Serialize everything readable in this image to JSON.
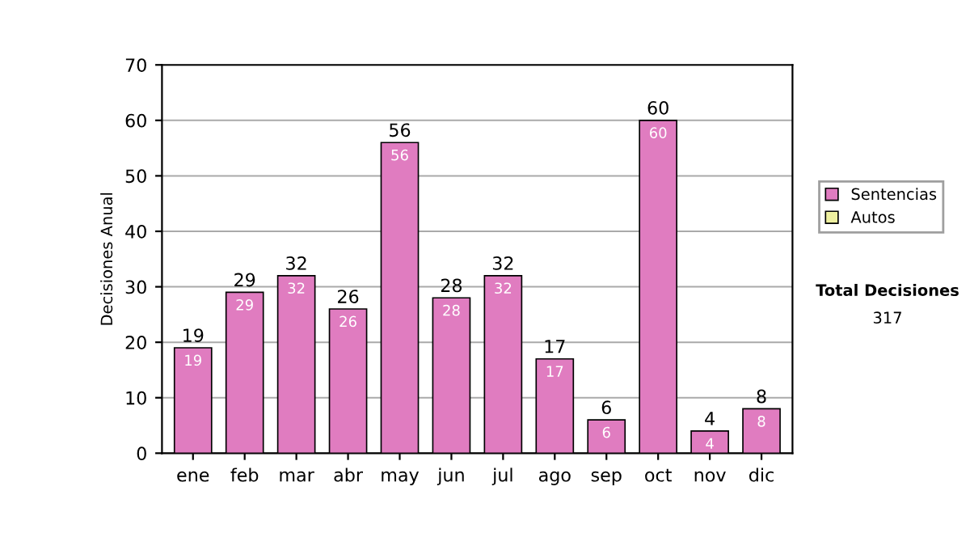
{
  "chart_data": {
    "type": "bar",
    "ylabel": "Decisiones Anual",
    "categories": [
      "ene",
      "feb",
      "mar",
      "abr",
      "may",
      "jun",
      "jul",
      "ago",
      "sep",
      "oct",
      "nov",
      "dic"
    ],
    "series": [
      {
        "name": "Sentencias",
        "color": "#e07cc0",
        "values": [
          19,
          29,
          32,
          26,
          56,
          28,
          32,
          17,
          6,
          60,
          4,
          8
        ]
      },
      {
        "name": "Autos",
        "color": "#eef0a0",
        "values": [
          null,
          null,
          null,
          null,
          null,
          null,
          null,
          null,
          null,
          null,
          null,
          null
        ]
      }
    ],
    "stacked": true,
    "data_labels": true,
    "totals": [
      "19",
      "29",
      "32",
      "26",
      "56",
      "28",
      "32",
      "17",
      "6",
      "60",
      "4",
      "8"
    ],
    "ylim": [
      0,
      70
    ],
    "yticks": [
      0,
      10,
      20,
      30,
      40,
      50,
      60,
      70
    ],
    "grid": "y",
    "legend": "right",
    "annotations": [
      "Total Decisiones",
      "317"
    ]
  }
}
